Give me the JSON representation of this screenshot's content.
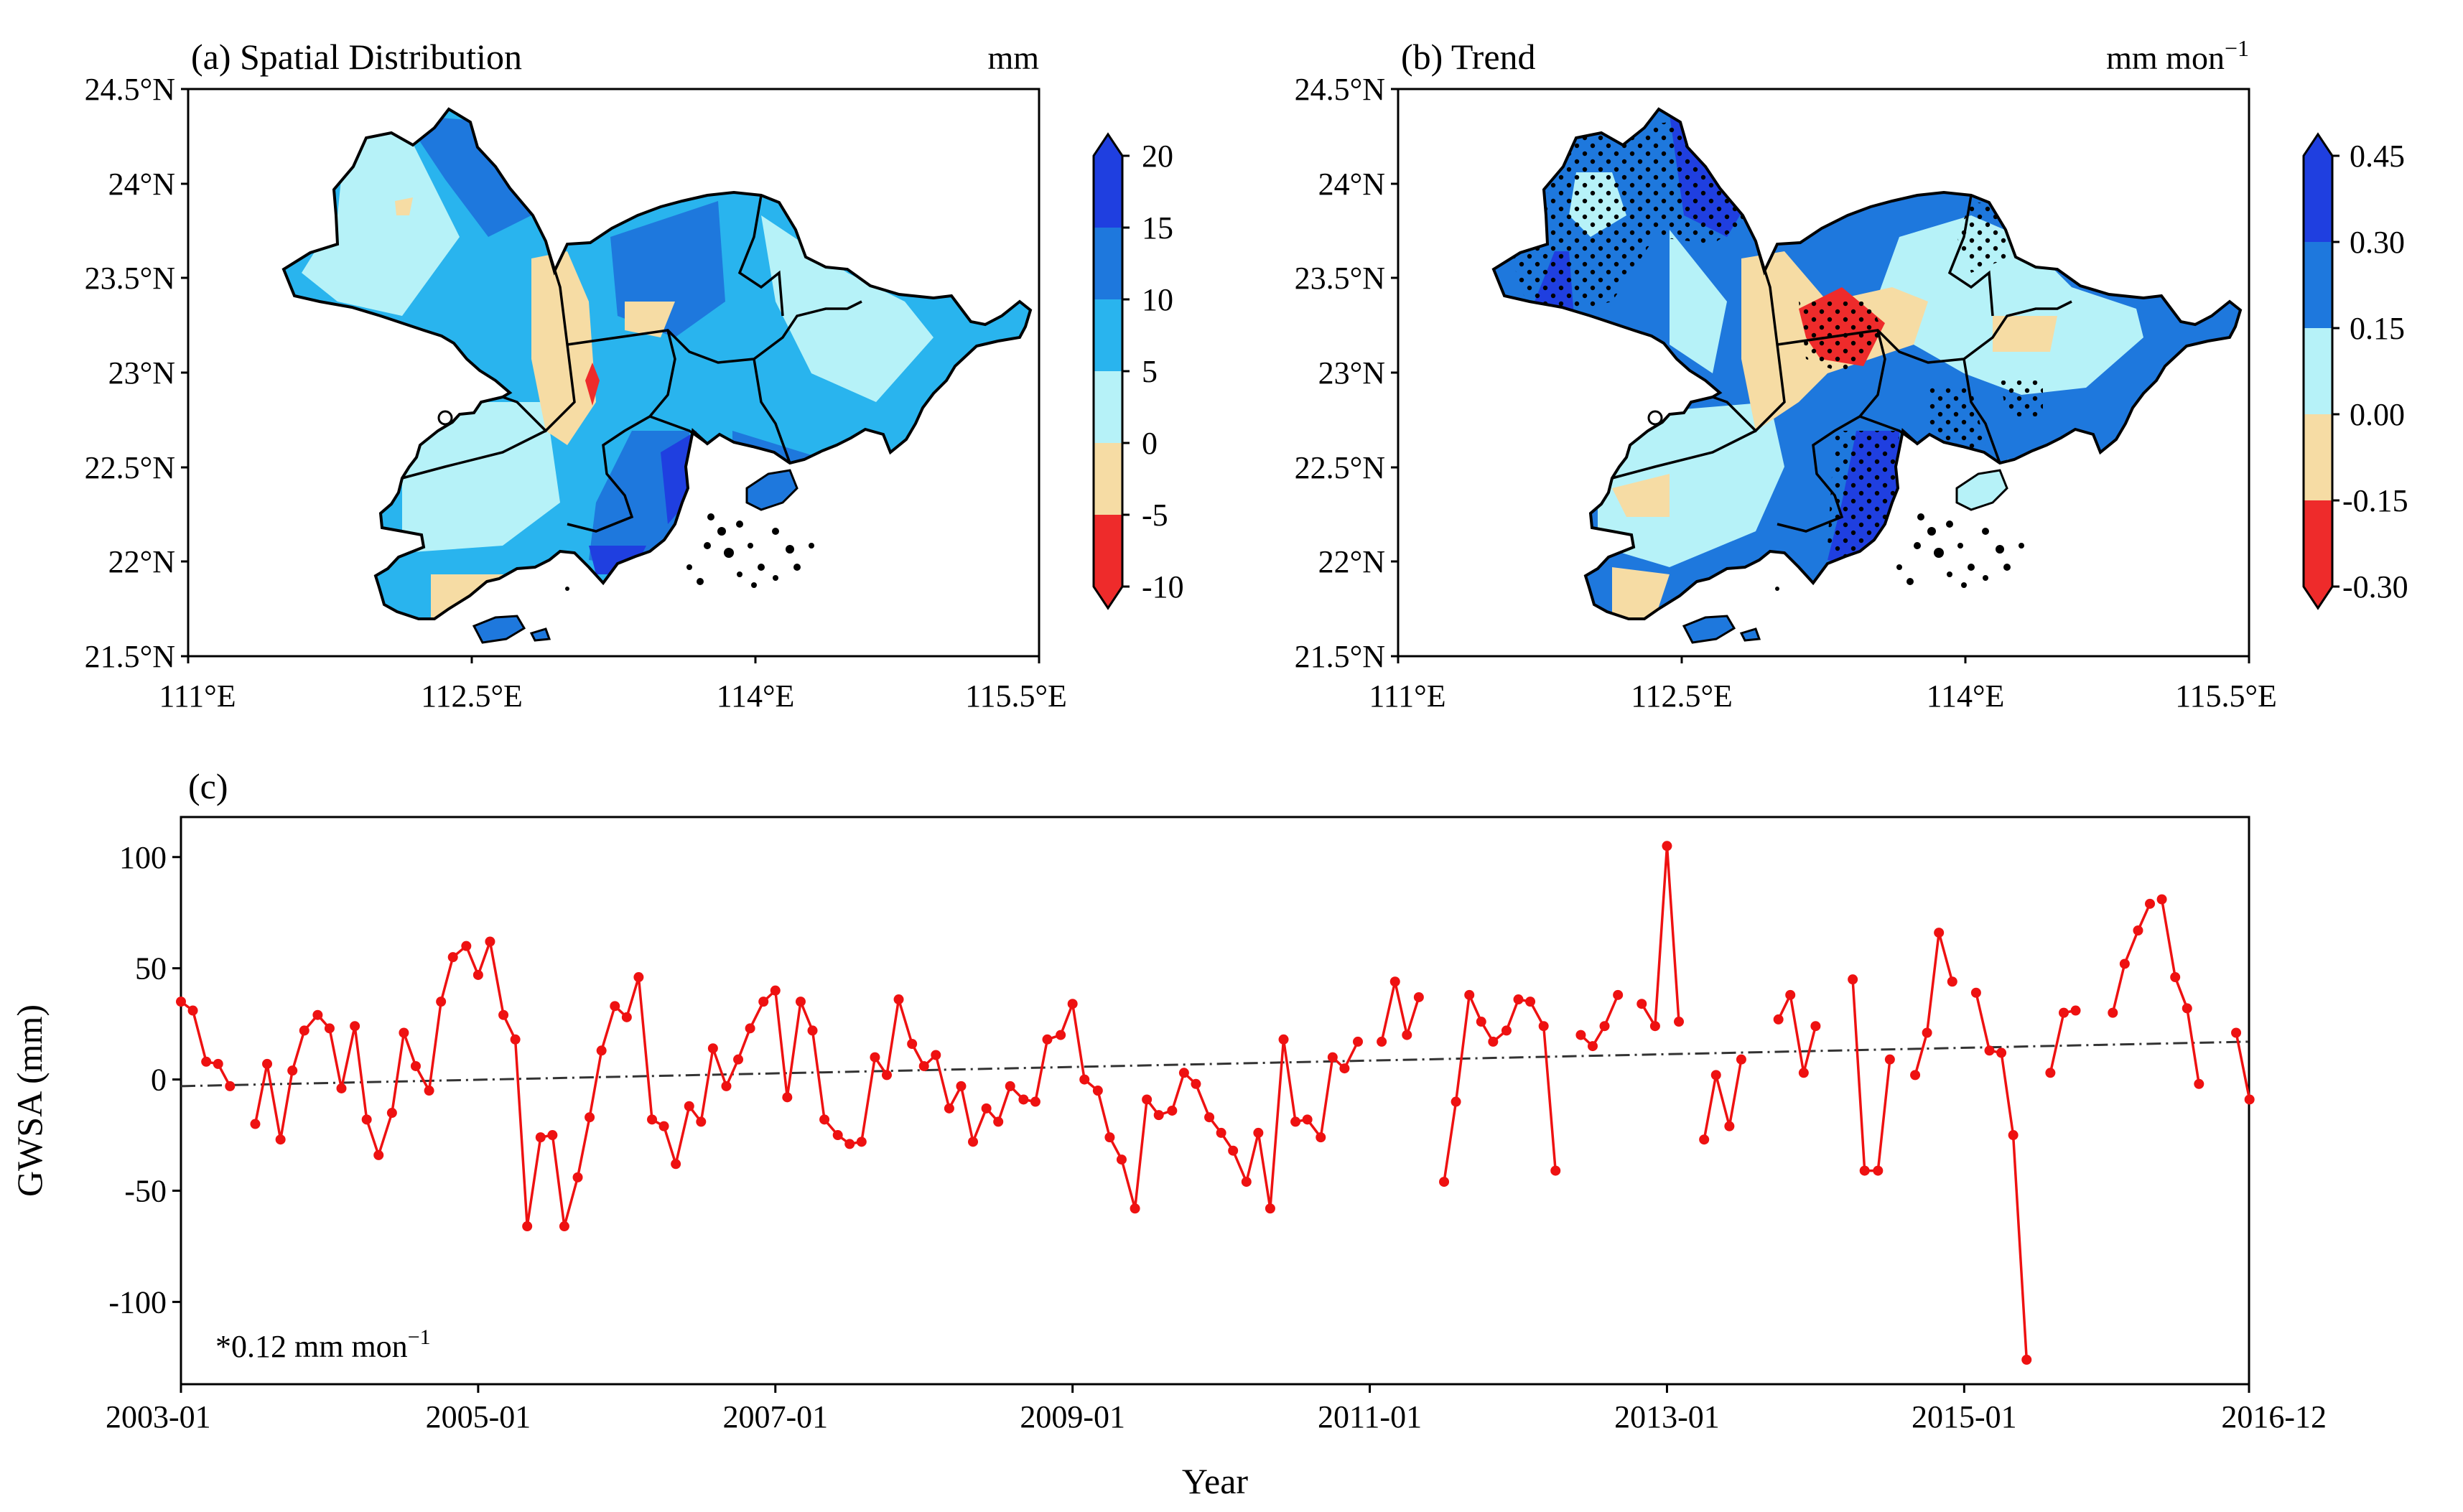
{
  "panel_a": {
    "title": "(a) Spatial Distribution",
    "unit": "mm",
    "lat_ticks": [
      "24.5°N",
      "24°N",
      "23.5°N",
      "23°N",
      "22.5°N",
      "22°N",
      "21.5°N"
    ],
    "lon_ticks": [
      "111°E",
      "112.5°E",
      "114°E",
      "115.5°E"
    ],
    "colorbar": {
      "labels": [
        "20",
        "15",
        "10",
        "5",
        "0",
        "-5",
        "-10"
      ],
      "colors": [
        "#1f3fe0",
        "#1e78dd",
        "#29b4ee",
        "#b6f2f8",
        "#f6dca4",
        "#ee2b2b"
      ]
    },
    "zone_colors": {
      "deep": "#1f3fe0",
      "mid": "#1e78dd",
      "light": "#29b4ee",
      "pale": "#b6f2f8",
      "neg": "#f6dca4",
      "red": "#ee2b2b"
    }
  },
  "panel_b": {
    "title": "(b) Trend",
    "unit_main": "mm mon",
    "unit_sup": "−1",
    "lat_ticks": [
      "24.5°N",
      "24°N",
      "23.5°N",
      "23°N",
      "22.5°N",
      "22°N",
      "21.5°N"
    ],
    "lon_ticks": [
      "111°E",
      "112.5°E",
      "114°E",
      "115.5°E"
    ],
    "colorbar": {
      "labels": [
        "0.45",
        "0.30",
        "0.15",
        "0.00",
        "-0.15",
        "-0.30"
      ],
      "colors": [
        "#1f3fe0",
        "#1e78dd",
        "#b6f2f8",
        "#f6dca4",
        "#ee2b2b"
      ]
    },
    "zone_colors": {
      "deep": "#1f3fe0",
      "mid": "#1e78dd",
      "pale": "#b6f2f8",
      "neg": "#f6dca4",
      "red": "#ee2b2b"
    }
  },
  "chart_data": {
    "type": "line",
    "panel_label": "(c)",
    "title": "",
    "xlabel": "Year",
    "ylabel": "GWSA (mm)",
    "xlim": [
      2003.0,
      2016.9167
    ],
    "ylim": [
      -137,
      118
    ],
    "x_ticks": [
      {
        "label": "2003-01",
        "x": 2003.0
      },
      {
        "label": "2005-01",
        "x": 2005.0
      },
      {
        "label": "2007-01",
        "x": 2007.0
      },
      {
        "label": "2009-01",
        "x": 2009.0
      },
      {
        "label": "2011-01",
        "x": 2011.0
      },
      {
        "label": "2013-01",
        "x": 2013.0
      },
      {
        "label": "2015-01",
        "x": 2015.0
      },
      {
        "label": "2016-12",
        "x": 2016.9167
      }
    ],
    "y_ticks": [
      100,
      50,
      0,
      -50,
      -100
    ],
    "annotation_main": "*0.12 mm mon",
    "annotation_sup": "−1",
    "series": [
      {
        "name": "GWSA",
        "color": "#ee1111",
        "marker": "circle",
        "segments": [
          [
            [
              2003.0,
              35
            ],
            [
              2003.08,
              31
            ],
            [
              2003.17,
              8
            ],
            [
              2003.25,
              7
            ],
            [
              2003.33,
              -3
            ]
          ],
          [
            [
              2003.5,
              -20
            ],
            [
              2003.58,
              7
            ],
            [
              2003.67,
              -27
            ],
            [
              2003.75,
              4
            ],
            [
              2003.83,
              22
            ],
            [
              2003.92,
              29
            ],
            [
              2004.0,
              23
            ],
            [
              2004.08,
              -4
            ],
            [
              2004.17,
              24
            ],
            [
              2004.25,
              -18
            ],
            [
              2004.33,
              -34
            ],
            [
              2004.42,
              -15
            ],
            [
              2004.5,
              21
            ],
            [
              2004.58,
              6
            ],
            [
              2004.67,
              -5
            ],
            [
              2004.75,
              35
            ],
            [
              2004.83,
              55
            ],
            [
              2004.92,
              60
            ],
            [
              2005.0,
              47
            ],
            [
              2005.08,
              62
            ],
            [
              2005.17,
              29
            ],
            [
              2005.25,
              18
            ],
            [
              2005.33,
              -66
            ],
            [
              2005.42,
              -26
            ],
            [
              2005.5,
              -25
            ],
            [
              2005.58,
              -66
            ],
            [
              2005.67,
              -44
            ],
            [
              2005.75,
              -17
            ],
            [
              2005.83,
              13
            ],
            [
              2005.92,
              33
            ],
            [
              2006.0,
              28
            ],
            [
              2006.08,
              46
            ],
            [
              2006.17,
              -18
            ],
            [
              2006.25,
              -21
            ],
            [
              2006.33,
              -38
            ],
            [
              2006.42,
              -12
            ],
            [
              2006.5,
              -19
            ],
            [
              2006.58,
              14
            ],
            [
              2006.67,
              -3
            ],
            [
              2006.75,
              9
            ],
            [
              2006.83,
              23
            ],
            [
              2006.92,
              35
            ],
            [
              2007.0,
              40
            ],
            [
              2007.08,
              -8
            ],
            [
              2007.17,
              35
            ],
            [
              2007.25,
              22
            ],
            [
              2007.33,
              -18
            ],
            [
              2007.42,
              -25
            ],
            [
              2007.5,
              -29
            ],
            [
              2007.58,
              -28
            ],
            [
              2007.67,
              10
            ],
            [
              2007.75,
              2
            ],
            [
              2007.83,
              36
            ],
            [
              2007.92,
              16
            ],
            [
              2008.0,
              6
            ],
            [
              2008.08,
              11
            ],
            [
              2008.17,
              -13
            ],
            [
              2008.25,
              -3
            ],
            [
              2008.33,
              -28
            ],
            [
              2008.42,
              -13
            ],
            [
              2008.5,
              -19
            ],
            [
              2008.58,
              -3
            ],
            [
              2008.67,
              -9
            ],
            [
              2008.75,
              -10
            ],
            [
              2008.83,
              18
            ],
            [
              2008.92,
              20
            ],
            [
              2009.0,
              34
            ],
            [
              2009.08,
              0
            ],
            [
              2009.17,
              -5
            ],
            [
              2009.25,
              -26
            ],
            [
              2009.33,
              -36
            ],
            [
              2009.42,
              -58
            ],
            [
              2009.5,
              -9
            ],
            [
              2009.58,
              -16
            ],
            [
              2009.67,
              -14
            ],
            [
              2009.75,
              3
            ],
            [
              2009.83,
              -2
            ],
            [
              2009.92,
              -17
            ],
            [
              2010.0,
              -24
            ],
            [
              2010.08,
              -32
            ],
            [
              2010.17,
              -46
            ],
            [
              2010.25,
              -24
            ],
            [
              2010.33,
              -58
            ],
            [
              2010.42,
              18
            ],
            [
              2010.5,
              -19
            ],
            [
              2010.58,
              -18
            ],
            [
              2010.67,
              -26
            ],
            [
              2010.75,
              10
            ],
            [
              2010.83,
              5
            ],
            [
              2010.92,
              17
            ]
          ],
          [
            [
              2011.08,
              17
            ],
            [
              2011.17,
              44
            ],
            [
              2011.25,
              20
            ],
            [
              2011.33,
              37
            ]
          ],
          [
            [
              2011.5,
              -46
            ],
            [
              2011.58,
              -10
            ],
            [
              2011.67,
              38
            ],
            [
              2011.75,
              26
            ],
            [
              2011.83,
              17
            ],
            [
              2011.92,
              22
            ],
            [
              2012.0,
              36
            ],
            [
              2012.08,
              35
            ],
            [
              2012.17,
              24
            ],
            [
              2012.25,
              -41
            ]
          ],
          [
            [
              2012.42,
              20
            ],
            [
              2012.5,
              15
            ],
            [
              2012.58,
              24
            ],
            [
              2012.67,
              38
            ]
          ],
          [
            [
              2012.83,
              34
            ],
            [
              2012.92,
              24
            ],
            [
              2013.0,
              105
            ],
            [
              2013.08,
              26
            ]
          ],
          [
            [
              2013.25,
              -27
            ],
            [
              2013.33,
              2
            ],
            [
              2013.42,
              -21
            ],
            [
              2013.5,
              9
            ]
          ],
          [
            [
              2013.75,
              27
            ],
            [
              2013.83,
              38
            ],
            [
              2013.92,
              3
            ],
            [
              2014.0,
              24
            ]
          ],
          [
            [
              2014.25,
              45
            ],
            [
              2014.33,
              -41
            ],
            [
              2014.42,
              -41
            ],
            [
              2014.5,
              9
            ]
          ],
          [
            [
              2014.67,
              2
            ],
            [
              2014.75,
              21
            ],
            [
              2014.83,
              66
            ],
            [
              2014.92,
              44
            ]
          ],
          [
            [
              2015.08,
              39
            ],
            [
              2015.17,
              13
            ],
            [
              2015.25,
              12
            ],
            [
              2015.33,
              -25
            ],
            [
              2015.42,
              -126
            ]
          ],
          [
            [
              2015.58,
              3
            ],
            [
              2015.67,
              30
            ],
            [
              2015.75,
              31
            ]
          ],
          [
            [
              2016.0,
              30
            ],
            [
              2016.08,
              52
            ],
            [
              2016.17,
              67
            ],
            [
              2016.25,
              79
            ]
          ],
          [
            [
              2016.33,
              81
            ],
            [
              2016.42,
              46
            ],
            [
              2016.5,
              32
            ],
            [
              2016.58,
              -2
            ]
          ],
          [
            [
              2016.83,
              21
            ],
            [
              2016.92,
              -9
            ]
          ]
        ]
      },
      {
        "name": "Linear trend",
        "color": "#333333",
        "style": "dash-dot",
        "x": [
          2003.0,
          2016.9167
        ],
        "y": [
          -3,
          17
        ]
      }
    ]
  }
}
